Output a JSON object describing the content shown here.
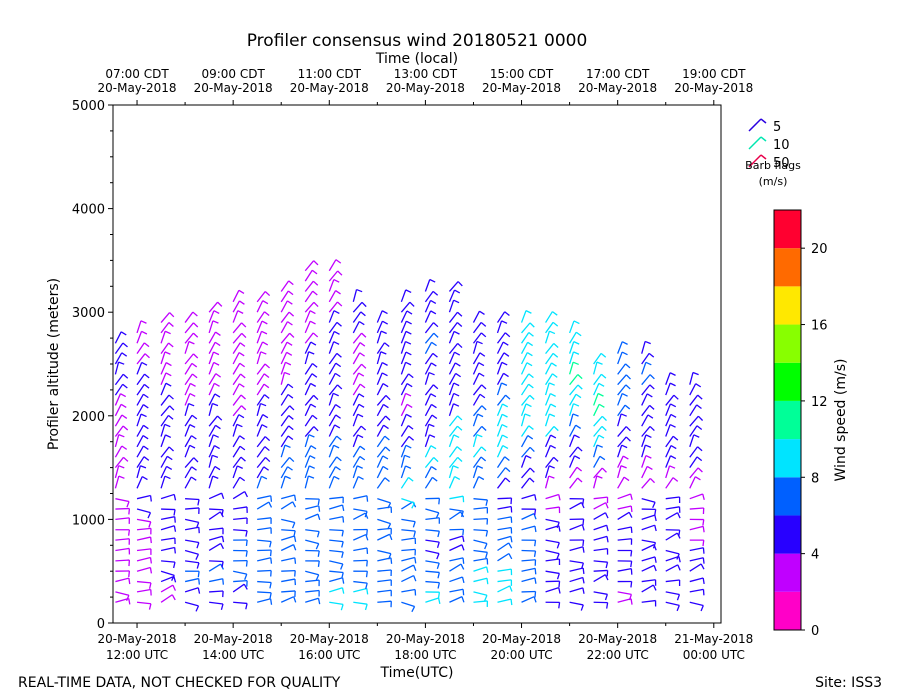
{
  "chart_data": {
    "type": "wind-barb",
    "title": "Profiler consensus wind 20180521 0000",
    "top_axis_title": "Time (local)",
    "xlabel": "Time(UTC)",
    "ylabel": "Profiler altitude (meters)",
    "ylim": [
      0,
      5000
    ],
    "y_ticks": [
      "0",
      "1000",
      "2000",
      "3000",
      "4000",
      "5000"
    ],
    "x_range_hours": [
      11.5,
      24.15
    ],
    "bottom_ticks": [
      {
        "h": 12,
        "line1": "20-May-2018",
        "line2": "12:00 UTC"
      },
      {
        "h": 14,
        "line1": "20-May-2018",
        "line2": "14:00 UTC"
      },
      {
        "h": 16,
        "line1": "20-May-2018",
        "line2": "16:00 UTC"
      },
      {
        "h": 18,
        "line1": "20-May-2018",
        "line2": "18:00 UTC"
      },
      {
        "h": 20,
        "line1": "20-May-2018",
        "line2": "20:00 UTC"
      },
      {
        "h": 22,
        "line1": "20-May-2018",
        "line2": "22:00 UTC"
      },
      {
        "h": 24,
        "line1": "21-May-2018",
        "line2": "00:00 UTC"
      }
    ],
    "top_ticks": [
      {
        "h": 12,
        "line1": "07:00 CDT",
        "line2": "20-May-2018"
      },
      {
        "h": 14,
        "line1": "09:00 CDT",
        "line2": "20-May-2018"
      },
      {
        "h": 16,
        "line1": "11:00 CDT",
        "line2": "20-May-2018"
      },
      {
        "h": 18,
        "line1": "13:00 CDT",
        "line2": "20-May-2018"
      },
      {
        "h": 20,
        "line1": "15:00 CDT",
        "line2": "20-May-2018"
      },
      {
        "h": 22,
        "line1": "17:00 CDT",
        "line2": "20-May-2018"
      },
      {
        "h": 24,
        "line1": "19:00 CDT",
        "line2": "20-May-2018"
      }
    ],
    "legend": {
      "title": "Barb flags",
      "subtitle": "(m/s)",
      "entries": [
        {
          "label": "5",
          "color": "#2a00e0"
        },
        {
          "label": "10",
          "color": "#00e6b0"
        },
        {
          "label": "50",
          "color": "#e8004a"
        }
      ]
    },
    "colorbar": {
      "label": "Wind speed (m/s)",
      "min": 0,
      "max": 22,
      "tick_labels": [
        "0",
        "4",
        "8",
        "12",
        "16",
        "20"
      ],
      "tick_values": [
        0,
        4,
        8,
        12,
        16,
        20
      ],
      "colors": [
        "#ff00c8",
        "#c000ff",
        "#2800ff",
        "#0060ff",
        "#00e4ff",
        "#00ff98",
        "#00ff00",
        "#88ff00",
        "#ffe800",
        "#ff6a00",
        "#ff0030"
      ]
    },
    "profiles": [
      {
        "t": 11.55,
        "top": 2750,
        "spd": [
          3,
          3,
          3,
          2,
          2,
          2,
          2,
          2,
          3,
          3,
          4,
          4,
          4
        ]
      },
      {
        "t": 12.0,
        "top": 2850,
        "spd": [
          2,
          3,
          3,
          3,
          4,
          5,
          5,
          5,
          4,
          4,
          3,
          2
        ]
      },
      {
        "t": 12.5,
        "top": 2900,
        "spd": [
          3,
          4,
          5,
          5,
          5,
          5,
          5,
          4,
          4,
          3,
          2,
          2
        ]
      },
      {
        "t": 13.0,
        "top": 2950,
        "spd": [
          5,
          6,
          5,
          5,
          5,
          5,
          4,
          4,
          3,
          3,
          2,
          2
        ]
      },
      {
        "t": 13.5,
        "top": 3050,
        "spd": [
          5,
          6,
          5,
          5,
          5,
          4,
          4,
          4,
          3,
          3,
          2,
          2
        ]
      },
      {
        "t": 14.0,
        "top": 3100,
        "spd": [
          5,
          6,
          6,
          5,
          5,
          5,
          4,
          3,
          3,
          3,
          2,
          2
        ]
      },
      {
        "t": 14.5,
        "top": 3100,
        "spd": [
          6,
          6,
          6,
          6,
          6,
          5,
          5,
          4,
          3,
          3,
          3,
          3
        ]
      },
      {
        "t": 15.0,
        "top": 3250,
        "spd": [
          6,
          6,
          6,
          6,
          6,
          6,
          5,
          4,
          3,
          3,
          3,
          3
        ]
      },
      {
        "t": 15.5,
        "top": 3400,
        "spd": [
          7,
          7,
          6,
          6,
          6,
          6,
          5,
          5,
          4,
          3,
          3,
          3
        ]
      },
      {
        "t": 16.0,
        "top": 3400,
        "spd": [
          8,
          7,
          6,
          6,
          6,
          6,
          5,
          4,
          4,
          4,
          3,
          3
        ]
      },
      {
        "t": 16.5,
        "top": 3150,
        "spd": [
          8,
          7,
          6,
          6,
          6,
          6,
          5,
          4,
          3,
          3,
          4,
          4
        ]
      },
      {
        "t": 17.0,
        "top": 2950,
        "spd": [
          7,
          6,
          6,
          6,
          6,
          6,
          6,
          4,
          4,
          4,
          4,
          4
        ]
      },
      {
        "t": 17.5,
        "top": 3150,
        "spd": [
          6,
          6,
          7,
          7,
          8,
          6,
          4,
          3,
          5,
          5,
          5,
          5
        ]
      },
      {
        "t": 18.0,
        "top": 3250,
        "spd": [
          8,
          6,
          5,
          6,
          7,
          8,
          4,
          4,
          5,
          6,
          5,
          5
        ]
      },
      {
        "t": 18.5,
        "top": 3200,
        "spd": [
          6,
          6,
          5,
          6,
          8,
          8,
          8,
          4,
          4,
          5,
          5,
          5
        ]
      },
      {
        "t": 19.0,
        "top": 2950,
        "spd": [
          8,
          8,
          6,
          6,
          6,
          7,
          8,
          7,
          4,
          5,
          5,
          5
        ]
      },
      {
        "t": 19.5,
        "top": 2900,
        "spd": [
          8,
          8,
          7,
          7,
          5,
          7,
          8,
          8,
          6,
          5,
          5,
          5
        ]
      },
      {
        "t": 20.0,
        "top": 2900,
        "spd": [
          6,
          6,
          6,
          6,
          4,
          4,
          6,
          8,
          8,
          8,
          8,
          8
        ]
      },
      {
        "t": 20.5,
        "top": 2900,
        "spd": [
          4,
          4,
          5,
          5,
          3,
          4,
          5,
          8,
          8,
          8,
          8,
          8
        ]
      },
      {
        "t": 21.0,
        "top": 2800,
        "spd": [
          4,
          4,
          4,
          5,
          4,
          3,
          5,
          6,
          8,
          10,
          8,
          8
        ]
      },
      {
        "t": 21.5,
        "top": 2500,
        "spd": [
          4,
          4,
          4,
          5,
          3,
          3,
          6,
          8,
          10,
          9,
          8
        ]
      },
      {
        "t": 22.0,
        "top": 2600,
        "spd": [
          3,
          5,
          5,
          5,
          3,
          3,
          4,
          5,
          6,
          7,
          6
        ]
      },
      {
        "t": 22.5,
        "top": 2600,
        "spd": [
          5,
          5,
          5,
          5,
          4,
          3,
          4,
          5,
          5,
          6,
          5
        ]
      },
      {
        "t": 23.0,
        "top": 2300,
        "spd": [
          4,
          4,
          5,
          4,
          4,
          3,
          4,
          4,
          4,
          4
        ]
      },
      {
        "t": 23.5,
        "top": 2350,
        "spd": [
          4,
          4,
          4,
          3,
          3,
          3,
          4,
          4,
          4,
          4
        ]
      }
    ]
  },
  "footer": {
    "left": "REAL-TIME DATA, NOT CHECKED FOR QUALITY",
    "right": "Site: ISS3"
  }
}
